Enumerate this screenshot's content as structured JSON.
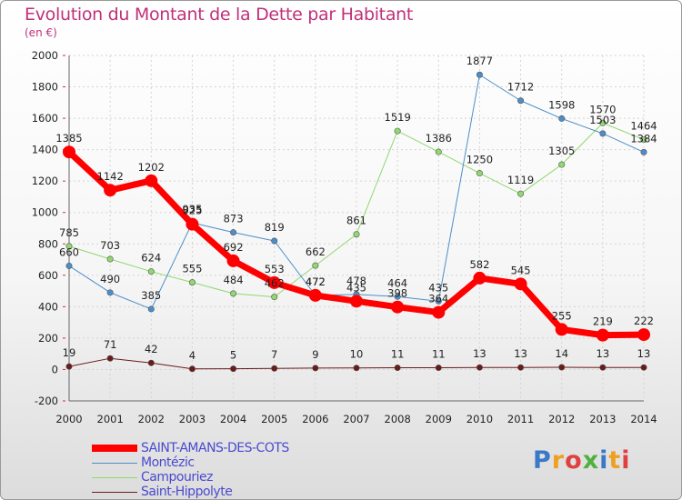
{
  "chart_data": {
    "type": "line",
    "title": "Evolution du Montant de la Dette par Habitant",
    "subtitle": "(en €)",
    "x": [
      "2000",
      "2001",
      "2002",
      "2003",
      "2004",
      "2005",
      "2006",
      "2007",
      "2008",
      "2009",
      "2010",
      "2011",
      "2012",
      "2013",
      "2014"
    ],
    "ylim": [
      -200,
      2000
    ],
    "yticks": [
      "-200",
      "0",
      "200",
      "400",
      "600",
      "800",
      "1000",
      "1200",
      "1400",
      "1600",
      "1800",
      "2000"
    ],
    "grid": true,
    "legend_position": "bottom-left",
    "series": [
      {
        "name": "Saint-Hippolyte",
        "color": "#6b1a1a",
        "width": 1,
        "values": [
          19,
          71,
          42,
          4,
          5,
          7,
          9,
          10,
          11,
          11,
          13,
          13,
          14,
          13,
          13
        ],
        "labels": [
          "19",
          "71",
          "42",
          "4",
          "5",
          "7",
          "9",
          "10",
          "11",
          "11",
          "13",
          "13",
          "14",
          "13",
          "13"
        ]
      },
      {
        "name": "Campouriez",
        "color": "#90d870",
        "width": 1,
        "values": [
          785,
          703,
          624,
          555,
          484,
          462,
          662,
          861,
          1519,
          1386,
          1250,
          1119,
          1305,
          1570,
          1464
        ],
        "labels": [
          "785",
          "703",
          "624",
          "555",
          "484",
          "462",
          "662",
          "861",
          "1519",
          "1386",
          "1250",
          "1119",
          "1305",
          "1570",
          "1464"
        ]
      },
      {
        "name": "Montézic",
        "color": "#4d8ec8",
        "width": 1,
        "values": [
          660,
          490,
          385,
          935,
          873,
          819,
          472,
          478,
          464,
          435,
          1877,
          1712,
          1598,
          1503,
          1384
        ],
        "labels": [
          "660",
          "490",
          "385",
          "935",
          "873",
          "819",
          "472",
          "478",
          "464",
          "435",
          "1877",
          "1712",
          "1598",
          "1503",
          "1384"
        ]
      },
      {
        "name": "SAINT-AMANS-DES-COTS",
        "color": "#ff0000",
        "width": 7,
        "values": [
          1385,
          1142,
          1202,
          925,
          692,
          553,
          472,
          435,
          398,
          364,
          582,
          545,
          255,
          219,
          222
        ],
        "labels": [
          "1385",
          "1142",
          "1202",
          "925",
          "692",
          "553",
          "472",
          "435",
          "398",
          "364",
          "582",
          "545",
          "255",
          "219",
          "222"
        ]
      }
    ]
  },
  "legend": [
    {
      "name": "SAINT-AMANS-DES-COTS",
      "color": "#ff0000",
      "thickness": 8
    },
    {
      "name": "Montézic",
      "color": "#4d8ec8",
      "thickness": 1
    },
    {
      "name": "Campouriez",
      "color": "#90d870",
      "thickness": 1
    },
    {
      "name": "Saint-Hippolyte",
      "color": "#6b1a1a",
      "thickness": 1
    }
  ],
  "logo": {
    "text": "Proxiti",
    "colors": [
      "#3a78c8",
      "#f0a020",
      "#e04040",
      "#50b040",
      "#3a78c8",
      "#f0a020",
      "#e04040"
    ]
  }
}
